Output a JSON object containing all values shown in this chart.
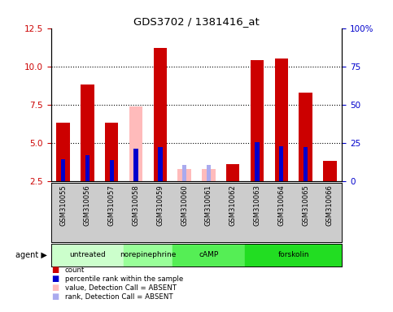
{
  "title": "GDS3702 / 1381416_at",
  "samples": [
    "GSM310055",
    "GSM310056",
    "GSM310057",
    "GSM310058",
    "GSM310059",
    "GSM310060",
    "GSM310061",
    "GSM310062",
    "GSM310063",
    "GSM310064",
    "GSM310065",
    "GSM310066"
  ],
  "red_bars": [
    6.3,
    8.8,
    6.3,
    null,
    11.2,
    null,
    null,
    3.6,
    10.4,
    10.5,
    8.3,
    3.8
  ],
  "pink_bars": [
    null,
    null,
    null,
    7.4,
    null,
    3.3,
    3.3,
    null,
    null,
    null,
    null,
    null
  ],
  "blue_bars": [
    3.9,
    4.2,
    3.85,
    4.6,
    4.7,
    null,
    null,
    null,
    5.05,
    4.75,
    4.7,
    null
  ],
  "lavender_bars": [
    null,
    null,
    null,
    null,
    null,
    3.55,
    3.55,
    null,
    null,
    null,
    null,
    null
  ],
  "agents": [
    {
      "label": "untreated",
      "start": 0,
      "end": 3,
      "color": "#ccffcc"
    },
    {
      "label": "norepinephrine",
      "start": 3,
      "end": 5,
      "color": "#99ff99"
    },
    {
      "label": "cAMP",
      "start": 5,
      "end": 8,
      "color": "#55ee55"
    },
    {
      "label": "forskolin",
      "start": 8,
      "end": 12,
      "color": "#22dd22"
    }
  ],
  "ylim_left": [
    2.5,
    12.5
  ],
  "ylim_right": [
    0,
    100
  ],
  "yticks_left": [
    2.5,
    5.0,
    7.5,
    10.0,
    12.5
  ],
  "yticks_right": [
    0,
    25,
    50,
    75,
    100
  ],
  "ytick_labels_right": [
    "0",
    "25",
    "50",
    "75",
    "100%"
  ],
  "red_color": "#cc0000",
  "pink_color": "#ffbbbb",
  "blue_color": "#0000cc",
  "lavender_color": "#aaaaee",
  "title_color": "#000000",
  "left_axis_color": "#cc0000",
  "right_axis_color": "#0000cc",
  "bg_color": "#ffffff",
  "sample_area_color": "#cccccc",
  "legend_items": [
    {
      "color": "#cc0000",
      "label": "count"
    },
    {
      "color": "#0000cc",
      "label": "percentile rank within the sample"
    },
    {
      "color": "#ffbbbb",
      "label": "value, Detection Call = ABSENT"
    },
    {
      "color": "#aaaaee",
      "label": "rank, Detection Call = ABSENT"
    }
  ]
}
